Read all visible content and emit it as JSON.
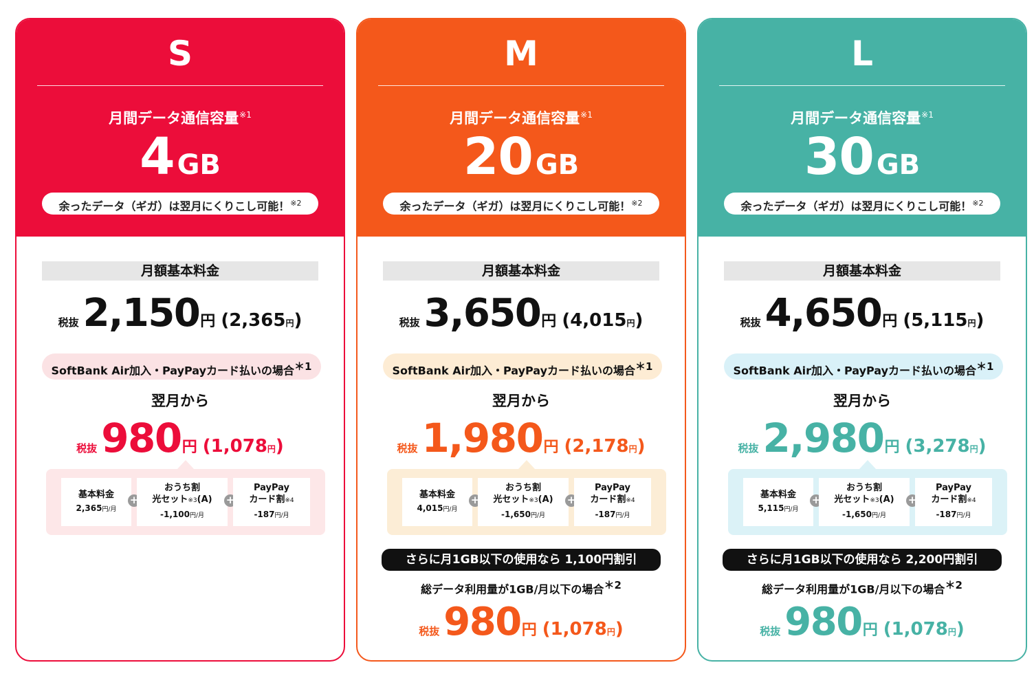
{
  "plans": [
    {
      "letter": "S",
      "data_label": "月間データ通信容量",
      "data_note": "※1",
      "data_amount": "4",
      "data_unit": "GB",
      "carryover": "余ったデータ（ギガ）は翌月にくりこし可能！",
      "carryover_note": "※2",
      "base_label": "月額基本料金",
      "tax_label": "税抜",
      "base_price": "2,150",
      "yen": "円",
      "base_price_incl": "(2,365",
      "paren_close": ")",
      "discount_label": "SoftBank Air加入・PayPayカード払いの場合",
      "discount_star": "＊1",
      "from_label": "翌月から",
      "disc_price": "980",
      "disc_price_incl": "(1,078",
      "breakdown": {
        "item1_title": "基本料金",
        "item1_value": "2,365",
        "item2_title_a": "おうち割",
        "item2_title_b": "光セット",
        "item2_note": "※3",
        "item2_suffix": "(A)",
        "item2_value": "-1,100",
        "item3_title_a": "PayPay",
        "item3_title_b": "カード割",
        "item3_note": "※4",
        "item3_value": "-187",
        "unit": "円/月",
        "plus": "+"
      }
    },
    {
      "letter": "M",
      "data_label": "月間データ通信容量",
      "data_note": "※1",
      "data_amount": "20",
      "data_unit": "GB",
      "carryover": "余ったデータ（ギガ）は翌月にくりこし可能！",
      "carryover_note": "※2",
      "base_label": "月額基本料金",
      "tax_label": "税抜",
      "base_price": "3,650",
      "yen": "円",
      "base_price_incl": "(4,015",
      "paren_close": ")",
      "discount_label": "SoftBank Air加入・PayPayカード払いの場合",
      "discount_star": "＊1",
      "from_label": "翌月から",
      "disc_price": "1,980",
      "disc_price_incl": "(2,178",
      "breakdown": {
        "item1_title": "基本料金",
        "item1_value": "4,015",
        "item2_title_a": "おうち割",
        "item2_title_b": "光セット",
        "item2_note": "※3",
        "item2_suffix": "(A)",
        "item2_value": "-1,650",
        "item3_title_a": "PayPay",
        "item3_title_b": "カード割",
        "item3_note": "※4",
        "item3_value": "-187",
        "unit": "円/月",
        "plus": "+"
      },
      "extra_bar": "さらに月1GB以下の使用なら 1,100円割引",
      "usage_label": "総データ利用量が1GB/月以下の場合",
      "usage_star": "＊2",
      "final_price": "980",
      "final_price_incl": "(1,078"
    },
    {
      "letter": "L",
      "data_label": "月間データ通信容量",
      "data_note": "※1",
      "data_amount": "30",
      "data_unit": "GB",
      "carryover": "余ったデータ（ギガ）は翌月にくりこし可能！",
      "carryover_note": "※2",
      "base_label": "月額基本料金",
      "tax_label": "税抜",
      "base_price": "4,650",
      "yen": "円",
      "base_price_incl": "(5,115",
      "paren_close": ")",
      "discount_label": "SoftBank Air加入・PayPayカード払いの場合",
      "discount_star": "＊1",
      "from_label": "翌月から",
      "disc_price": "2,980",
      "disc_price_incl": "(3,278",
      "breakdown": {
        "item1_title": "基本料金",
        "item1_value": "5,115",
        "item2_title_a": "おうち割",
        "item2_title_b": "光セット",
        "item2_note": "※3",
        "item2_suffix": "(A)",
        "item2_value": "-1,650",
        "item3_title_a": "PayPay",
        "item3_title_b": "カード割",
        "item3_note": "※4",
        "item3_value": "-187",
        "unit": "円/月",
        "plus": "+"
      },
      "extra_bar": "さらに月1GB以下の使用なら 2,200円割引",
      "usage_label": "総データ利用量が1GB/月以下の場合",
      "usage_star": "＊2",
      "final_price": "980",
      "final_price_incl": "(1,078"
    }
  ],
  "colors": {
    "s_plan": "#ec0d3a",
    "m_plan": "#f4581b",
    "l_plan": "#47b2a5"
  }
}
